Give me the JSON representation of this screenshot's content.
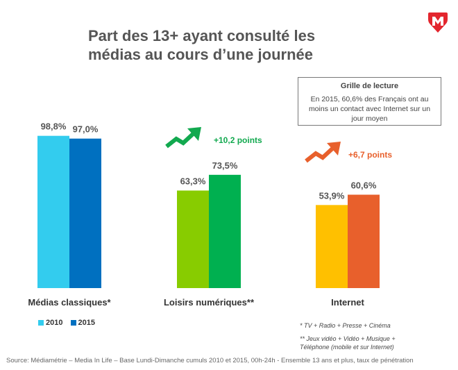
{
  "title_line1": "Part des 13+ ayant consulté les",
  "title_line2": "médias au cours d’une journée",
  "reading_box": {
    "title": "Grille de lecture",
    "text": "En 2015, 60,6% des Français ont au moins un contact avec Internet sur un jour moyen"
  },
  "deltas": [
    {
      "text": "+10,2 points",
      "color": "#12a94f"
    },
    {
      "text": "+6,7 points",
      "color": "#e8602c"
    }
  ],
  "footnotes": {
    "note1": "* TV + Radio + Presse + Cinéma",
    "note2a": "** Jeux vidéo + Vidéo + Musique +",
    "note2b": "Téléphone (mobile et sur Internet)"
  },
  "source": "Source: Médiamétrie – Media In Life – Base Lundi-Dimanche cumuls 2010 et 2015, 00h-24h - Ensemble 13 ans et plus, taux de pénétration",
  "chart_data": {
    "type": "bar",
    "categories": [
      "Médias classiques*",
      "Loisirs numériques**",
      "Internet"
    ],
    "series": [
      {
        "name": "2010",
        "values": [
          98.8,
          63.3,
          53.9
        ],
        "labels": [
          "98,8%",
          "63,3%",
          "53,9%"
        ]
      },
      {
        "name": "2015",
        "values": [
          97.0,
          73.5,
          60.6
        ],
        "labels": [
          "97,0%",
          "73,5%",
          "60,6%"
        ]
      }
    ],
    "colors": [
      [
        "#33ccee",
        "#0070c0"
      ],
      [
        "#88cc00",
        "#00b050"
      ],
      [
        "#ffc000",
        "#e8602c"
      ]
    ],
    "legend_colors": [
      "#33ccee",
      "#0070c0"
    ],
    "ylim": [
      0,
      100
    ],
    "legend_position": "bottom-left"
  }
}
